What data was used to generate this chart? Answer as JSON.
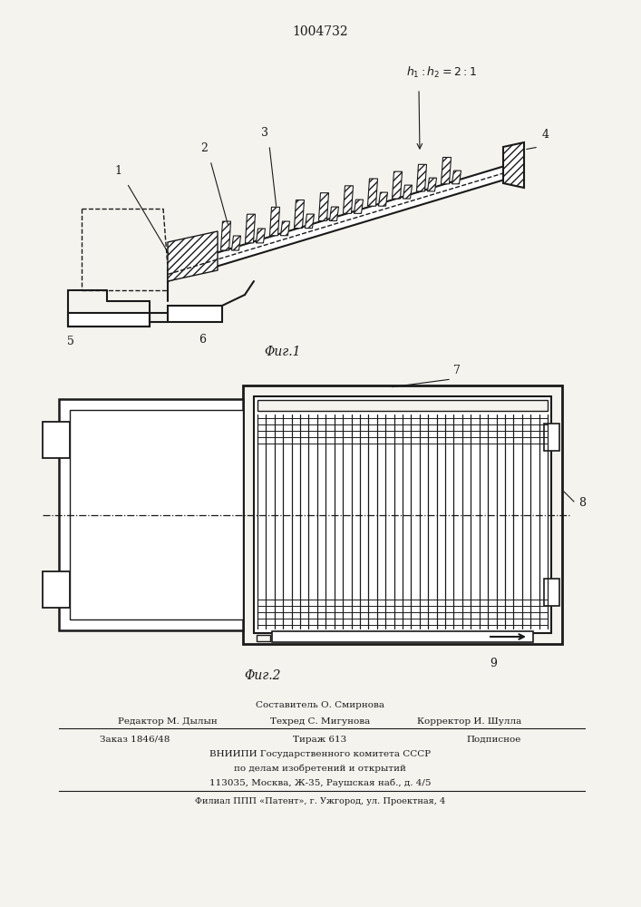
{
  "patent_number": "1004732",
  "fig1_caption": "Φиг.1",
  "fig2_caption": "Φиг.2",
  "bg_color": "#f5f3ee",
  "line_color": "#1a1a1a",
  "footer": {
    "sostavitel": "Составитель О. Смирнова",
    "redaktor": "Редактор М. Дылын",
    "tehred": "Техред С. Мигунова",
    "korrektor": "Корректор И. Шулла",
    "zakaz": "Заказ 1846/48",
    "tirazh": "Тираж 613",
    "podpisnoe": "Подписное",
    "vniipи": "ВНИИПИ Государственного комитета СССР",
    "dela": "по делам изобретений и открытий",
    "address": "113035, Москва, Ж-35, Раушская наб., д. 4/5",
    "filial": "Филиал ППП «Патент», г. Ужгород, ул. Проектная, 4"
  }
}
